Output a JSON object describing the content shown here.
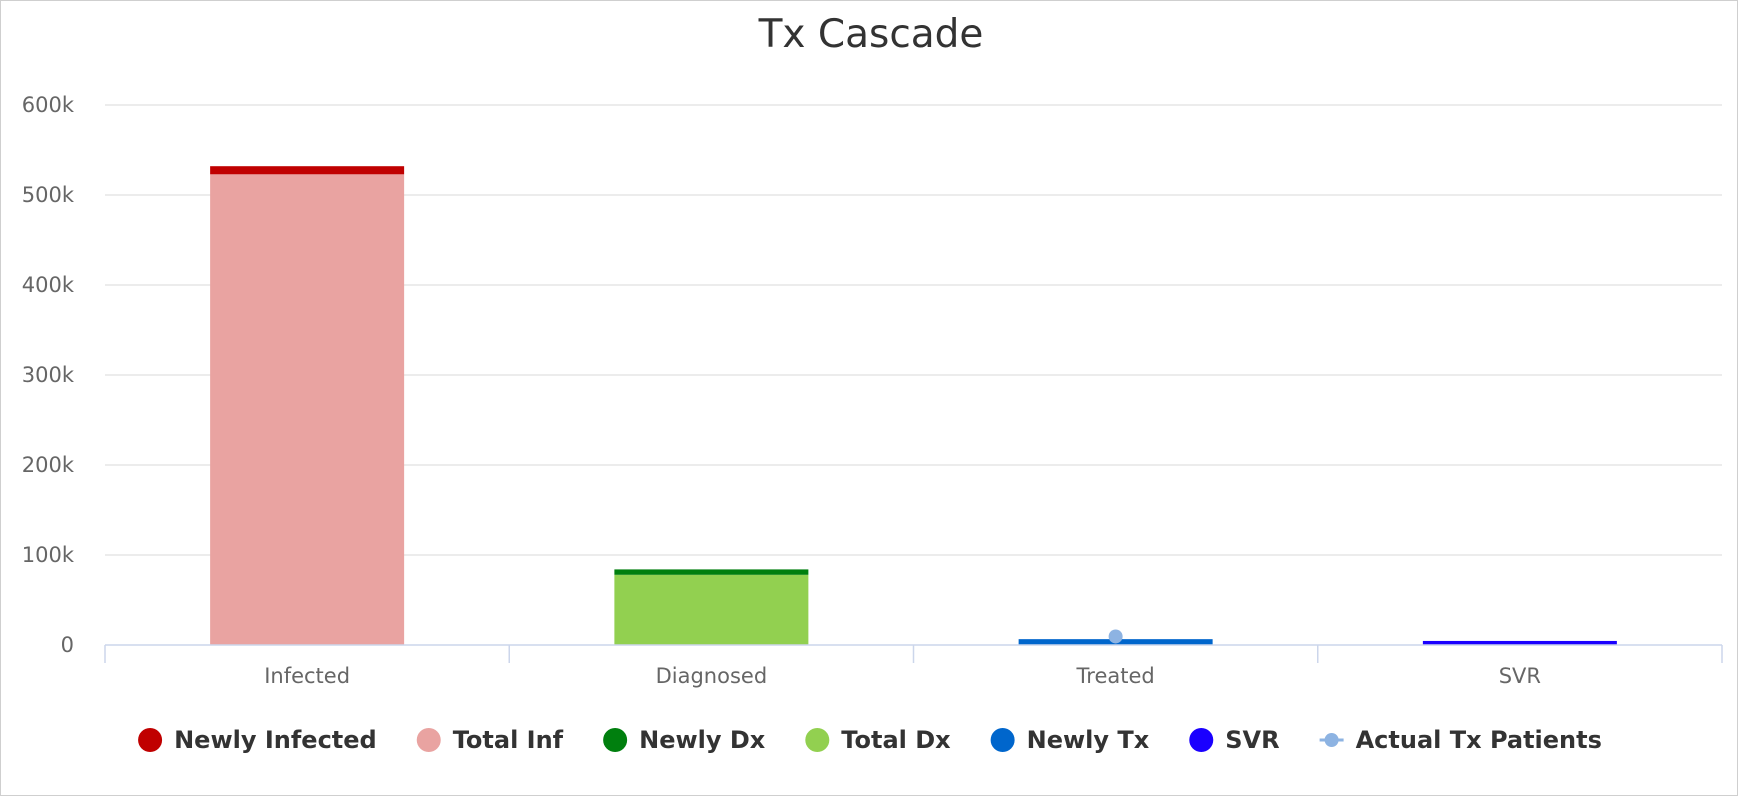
{
  "chart_data": {
    "type": "bar",
    "stacked": true,
    "title": "Tx Cascade",
    "categories": [
      "Infected",
      "Diagnosed",
      "Treated",
      "SVR"
    ],
    "y_ticks": [
      "0",
      "100k",
      "200k",
      "300k",
      "400k",
      "500k",
      "600k"
    ],
    "ylim": [
      0,
      600000
    ],
    "grid": true,
    "legend_position": "bottom-center",
    "series": [
      {
        "name": "Total Inf",
        "color": "#e9a3a1",
        "values": [
          523000,
          0,
          0,
          0
        ]
      },
      {
        "name": "Newly Infected",
        "color": "#c00000",
        "values": [
          9000,
          0,
          0,
          0
        ]
      },
      {
        "name": "Total Dx",
        "color": "#92d050",
        "values": [
          0,
          78000,
          0,
          0
        ]
      },
      {
        "name": "Newly Dx",
        "color": "#007f0e",
        "values": [
          0,
          6000,
          0,
          0
        ]
      },
      {
        "name": "Newly Tx",
        "color": "#0066cc",
        "values": [
          0,
          0,
          6500,
          0
        ]
      },
      {
        "name": "SVR",
        "color": "#1a00ff",
        "values": [
          0,
          0,
          0,
          4500
        ]
      }
    ],
    "line_series": [
      {
        "name": "Actual Tx Patients",
        "color": "#8db3e2",
        "values": [
          null,
          null,
          9500,
          null
        ]
      }
    ],
    "legend": [
      {
        "name": "Newly Infected",
        "color": "#c00000",
        "symbol": "circle"
      },
      {
        "name": "Total Inf",
        "color": "#e9a3a1",
        "symbol": "circle"
      },
      {
        "name": "Newly Dx",
        "color": "#007f0e",
        "symbol": "circle"
      },
      {
        "name": "Total Dx",
        "color": "#92d050",
        "symbol": "circle"
      },
      {
        "name": "Newly Tx",
        "color": "#0066cc",
        "symbol": "circle"
      },
      {
        "name": "SVR",
        "color": "#1a00ff",
        "symbol": "circle"
      },
      {
        "name": "Actual Tx Patients",
        "color": "#8db3e2",
        "symbol": "line-marker"
      }
    ]
  }
}
